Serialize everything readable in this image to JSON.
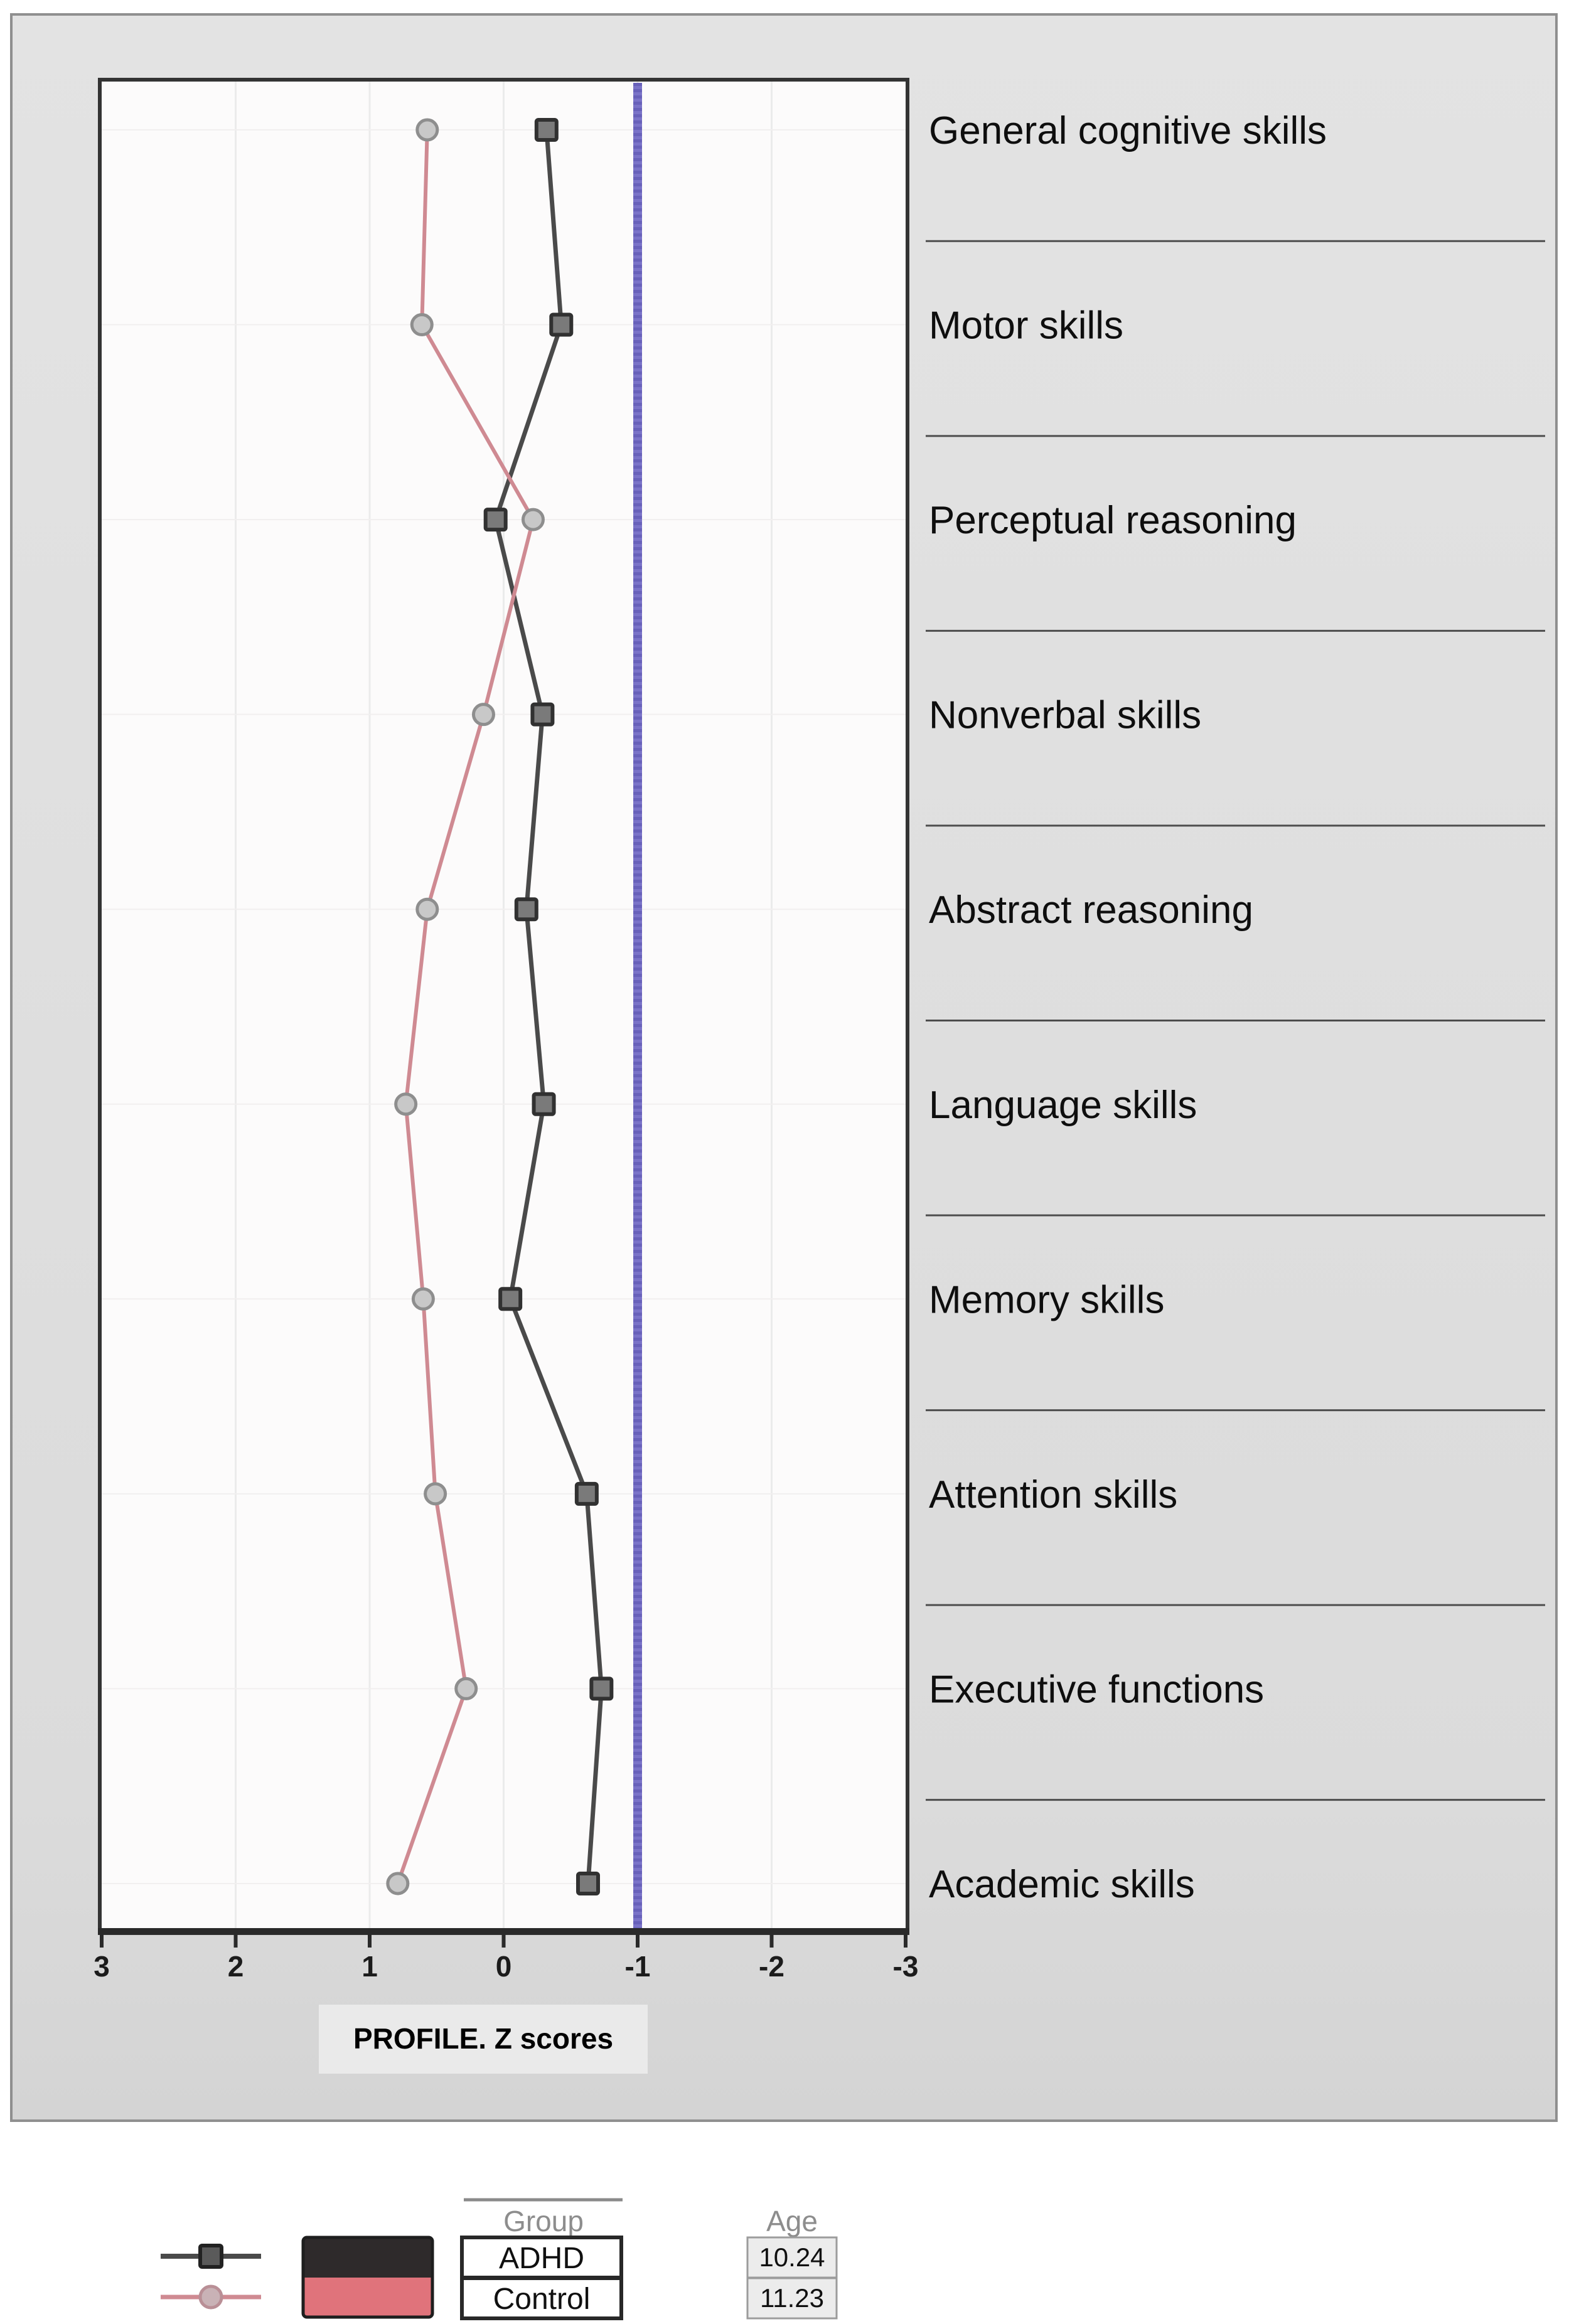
{
  "chart_data": {
    "type": "line",
    "title": "PROFILE. Z scores",
    "xlabel": "PROFILE. Z scores",
    "ylabel": "",
    "axis_orientation": "horizontal value axis, reversed (3 on left, -3 on right); categories stacked vertically",
    "x_ticks": [
      3,
      2,
      1,
      0,
      -1,
      -2,
      -3
    ],
    "x_range": [
      3,
      -3
    ],
    "reference_line_x": -1,
    "grid": "faint",
    "legend_position": "bottom",
    "categories": [
      "General cognitive skills",
      "Motor skills",
      "Perceptual reasoning",
      "Nonverbal skills",
      "Abstract reasoning",
      "Language skills",
      "Memory skills",
      "Attention skills",
      "Executive functions",
      "Academic skills"
    ],
    "series": [
      {
        "name": "ADHD",
        "marker": "square",
        "values": [
          -0.32,
          -0.43,
          0.06,
          -0.29,
          -0.17,
          -0.3,
          -0.05,
          -0.62,
          -0.73,
          -0.63
        ]
      },
      {
        "name": "Control",
        "marker": "circle",
        "values": [
          0.57,
          0.61,
          -0.22,
          0.15,
          0.57,
          0.73,
          0.6,
          0.51,
          0.28,
          0.79
        ]
      }
    ]
  },
  "legend": {
    "group_header": "Group",
    "items": [
      {
        "label": "ADHD",
        "swatch_color": "#2e2a2b",
        "marker": "square"
      },
      {
        "label": "Control",
        "swatch_color": "#e0737b",
        "marker": "circle"
      }
    ],
    "age_header": "Age",
    "ages": [
      "10.24",
      "11.23"
    ]
  },
  "colors": {
    "reference_line": "#7a73c8",
    "reference_line_dark": "#544cab",
    "adhd_line": "#4a4a4a",
    "control_line": "#cf8a92",
    "square_fill": "#7a7a7a",
    "square_stroke": "#313131",
    "circle_fill": "#c8c8c8",
    "circle_stroke": "#8e8e8e",
    "panel_bg": "#dedede",
    "plot_bg": "#fcfbfb",
    "plot_border": "#333333",
    "separator": "#4d4d4d",
    "gridline": "#ebebeb"
  }
}
